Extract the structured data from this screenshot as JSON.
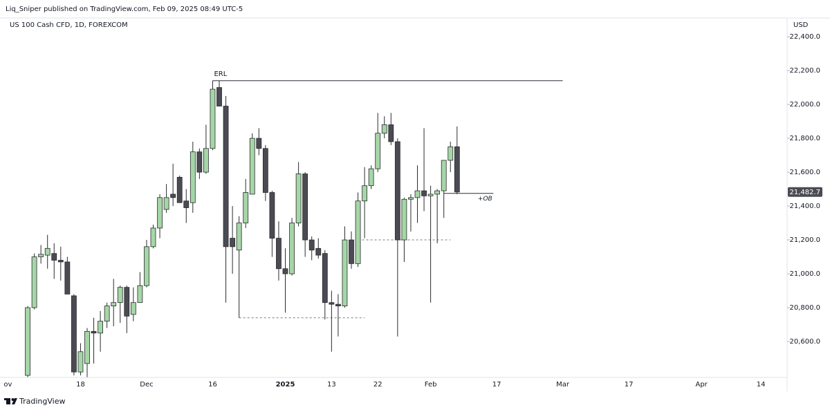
{
  "header": {
    "publisher_line": "Liq_Sniper published on TradingView.com, Feb 09, 2025 08:49 UTC-5"
  },
  "chart_data": {
    "type": "candlestick",
    "title": "US 100 Cash CFD, 1D, FOREXCOM",
    "currency": "USD",
    "categories": [
      "ov",
      null,
      null,
      null,
      null,
      null,
      null,
      null,
      null,
      null,
      null,
      "18",
      null,
      null,
      null,
      null,
      null,
      null,
      null,
      null,
      null,
      "Dec",
      null,
      null,
      null,
      null,
      null,
      null,
      null,
      null,
      null,
      "16",
      null,
      null,
      null,
      null,
      null,
      null,
      null,
      null,
      null,
      null,
      "2025",
      null,
      null,
      null,
      null,
      null,
      null,
      "13",
      null,
      null,
      null,
      null,
      null,
      null,
      "22",
      null,
      null,
      null,
      null,
      null,
      null,
      null,
      "Feb",
      null,
      null,
      null,
      null,
      null,
      null,
      null,
      null,
      null,
      "17",
      null,
      null,
      null,
      null,
      null,
      null,
      null,
      null,
      null,
      "Mar",
      null,
      null,
      null,
      null,
      null,
      null,
      null,
      null,
      null,
      "17",
      null,
      null,
      null,
      null,
      null,
      null,
      null,
      null,
      null,
      null,
      "Apr",
      null,
      null,
      null,
      null,
      null,
      null,
      null,
      null,
      "14",
      null,
      null,
      null
    ],
    "open": [
      null,
      null,
      null,
      20400,
      20800,
      21100,
      21110,
      21120,
      21080,
      21070,
      20870,
      20420,
      20470,
      20660,
      20650,
      20720,
      20810,
      20830,
      20920,
      20760,
      20830,
      20930,
      21160,
      21270,
      21380,
      21470,
      21570,
      21430,
      21420,
      21720,
      21600,
      21740,
      22100,
      21990,
      21210,
      21140,
      21300,
      21470,
      21800,
      21740,
      21480,
      21210,
      21030,
      21000,
      21300,
      21590,
      21200,
      21150,
      21120,
      20830,
      20820,
      20810,
      21200,
      21060,
      21430,
      21520,
      21620,
      21830,
      21880,
      21780,
      21200,
      21440,
      21450,
      21490,
      21460,
      21470,
      21490,
      21670,
      21750,
      null,
      null,
      null,
      null,
      null,
      null,
      null,
      null,
      null,
      null,
      null,
      null,
      null,
      null,
      null,
      null,
      null,
      null,
      null,
      null,
      null,
      null,
      null,
      null,
      null,
      null,
      null,
      null,
      null,
      null,
      null,
      null,
      null,
      null,
      null,
      null,
      null,
      null,
      null,
      null,
      null,
      null,
      null,
      null,
      null,
      null,
      null,
      null,
      null
    ],
    "high": [
      null,
      null,
      null,
      20810,
      21120,
      21170,
      21230,
      21180,
      21160,
      21100,
      20880,
      20590,
      20680,
      20740,
      20780,
      20830,
      20970,
      20930,
      20930,
      20920,
      21010,
      21200,
      21290,
      21470,
      21530,
      21650,
      21580,
      21500,
      21780,
      21740,
      21880,
      22140,
      22140,
      22050,
      21400,
      21340,
      21560,
      21830,
      21860,
      21760,
      21490,
      21310,
      21150,
      21330,
      21660,
      21600,
      21220,
      21210,
      21140,
      20900,
      20880,
      21280,
      21250,
      21480,
      21630,
      21640,
      21950,
      21930,
      21950,
      21800,
      21450,
      21470,
      21640,
      21860,
      21520,
      21500,
      21670,
      21780,
      21870,
      null,
      null,
      null,
      null,
      null,
      null,
      null,
      null,
      null,
      null,
      null,
      null,
      null,
      null,
      null,
      null,
      null,
      null,
      null,
      null,
      null,
      null,
      null,
      null,
      null,
      null,
      null,
      null,
      null,
      null,
      null,
      null,
      null,
      null,
      null,
      null,
      null,
      null,
      null,
      null,
      null,
      null,
      null,
      null,
      null,
      null,
      null,
      null,
      null
    ],
    "low": [
      null,
      null,
      null,
      20390,
      20790,
      21060,
      21030,
      20970,
      20960,
      20880,
      20400,
      20400,
      20390,
      20470,
      20540,
      20680,
      20690,
      20710,
      20650,
      20720,
      20830,
      20920,
      21150,
      21210,
      21360,
      21400,
      21430,
      21300,
      21360,
      21560,
      21590,
      21730,
      21990,
      20830,
      21000,
      20740,
      21270,
      21470,
      21700,
      21430,
      21100,
      20960,
      20770,
      20990,
      21280,
      21100,
      21080,
      21090,
      20730,
      20540,
      20630,
      20800,
      21030,
      21040,
      21210,
      21500,
      21600,
      21800,
      21760,
      20630,
      21070,
      21250,
      21300,
      21370,
      20830,
      21180,
      21330,
      21600,
      21470,
      null,
      null,
      null,
      null,
      null,
      null,
      null,
      null,
      null,
      null,
      null,
      null,
      null,
      null,
      null,
      null,
      null,
      null,
      null,
      null,
      null,
      null,
      null,
      null,
      null,
      null,
      null,
      null,
      null,
      null,
      null,
      null,
      null,
      null,
      null,
      null,
      null,
      null,
      null,
      null,
      null,
      null,
      null,
      null,
      null,
      null,
      null,
      null,
      null
    ],
    "close": [
      null,
      null,
      null,
      20800,
      21100,
      21115,
      21150,
      21080,
      21070,
      20880,
      20420,
      20540,
      20660,
      20650,
      20720,
      20810,
      20830,
      20920,
      20750,
      20830,
      20930,
      21160,
      21270,
      21450,
      21450,
      21450,
      21420,
      21390,
      21720,
      21600,
      21740,
      22090,
      21990,
      21160,
      21160,
      21300,
      21480,
      21800,
      21740,
      21480,
      21210,
      21030,
      21000,
      21300,
      21590,
      21200,
      21140,
      21110,
      20830,
      20820,
      20810,
      21200,
      21060,
      21430,
      21520,
      21620,
      21830,
      21880,
      21780,
      21200,
      21440,
      21450,
      21490,
      21460,
      21470,
      21490,
      21670,
      21750,
      21482.7,
      null,
      null,
      null,
      null,
      null,
      null,
      null,
      null,
      null,
      null,
      null,
      null,
      null,
      null,
      null,
      null,
      null,
      null,
      null,
      null,
      null,
      null,
      null,
      null,
      null,
      null,
      null,
      null,
      null,
      null,
      null,
      null,
      null,
      null,
      null,
      null,
      null,
      null,
      null,
      null,
      null,
      null,
      null,
      null,
      null,
      null,
      null,
      null,
      null
    ],
    "up_color": "#a5d6a7",
    "down_color": "#4b4b53",
    "outline_color": "#2a2a2e",
    "ylim": [
      20392,
      22433
    ],
    "yticks": [
      {
        "value": 20600,
        "label": "20,600.0"
      },
      {
        "value": 20800,
        "label": "20,800.0"
      },
      {
        "value": 21000,
        "label": "21,000.0"
      },
      {
        "value": 21200,
        "label": "21,200.0"
      },
      {
        "value": 21400,
        "label": "21,400.0"
      },
      {
        "value": 21600,
        "label": "21,600.0"
      },
      {
        "value": 21800,
        "label": "21,800.0"
      },
      {
        "value": 22000,
        "label": "22,000.0"
      },
      {
        "value": 22200,
        "label": "22,200.0"
      },
      {
        "value": 22400,
        "label": "22,400.0"
      }
    ],
    "last_price": {
      "value": 21482.7,
      "label": "21,482.7"
    },
    "annotations": [
      {
        "label": "ERL",
        "price": 22140,
        "style": "solid"
      },
      {
        "label": "+OB",
        "price": 21475,
        "style": "solid"
      },
      {
        "price": 21200,
        "style": "dashed"
      },
      {
        "price": 20740,
        "style": "dashed"
      }
    ],
    "grid": false
  },
  "footer": {
    "brand": "TradingView"
  }
}
